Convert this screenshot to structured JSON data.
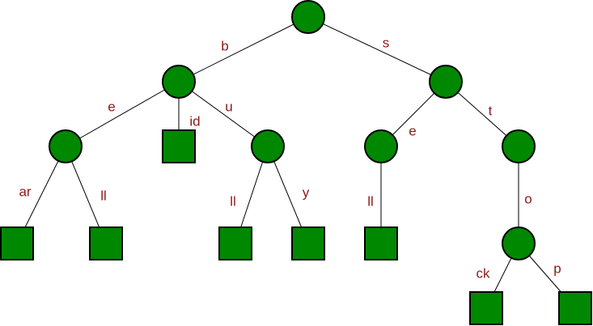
{
  "colors": {
    "node_fill": "#008800",
    "label": "#8b1a1a"
  },
  "tree": {
    "nodes": [
      {
        "id": "root",
        "kind": "internal"
      },
      {
        "id": "n-b",
        "kind": "internal"
      },
      {
        "id": "n-s",
        "kind": "internal"
      },
      {
        "id": "n-be",
        "kind": "internal"
      },
      {
        "id": "n-bid",
        "kind": "leaf"
      },
      {
        "id": "n-bu",
        "kind": "internal"
      },
      {
        "id": "n-bear",
        "kind": "leaf"
      },
      {
        "id": "n-bell",
        "kind": "leaf"
      },
      {
        "id": "n-bull",
        "kind": "leaf"
      },
      {
        "id": "n-buy",
        "kind": "leaf"
      },
      {
        "id": "n-se",
        "kind": "internal"
      },
      {
        "id": "n-st",
        "kind": "internal"
      },
      {
        "id": "n-sell",
        "kind": "leaf"
      },
      {
        "id": "n-sto",
        "kind": "internal"
      },
      {
        "id": "n-stock",
        "kind": "leaf"
      },
      {
        "id": "n-stop",
        "kind": "leaf"
      }
    ],
    "edges": [
      {
        "from": "root",
        "to": "n-b",
        "label": "b"
      },
      {
        "from": "root",
        "to": "n-s",
        "label": "s"
      },
      {
        "from": "n-b",
        "to": "n-be",
        "label": "e"
      },
      {
        "from": "n-b",
        "to": "n-bid",
        "label": "id"
      },
      {
        "from": "n-b",
        "to": "n-bu",
        "label": "u"
      },
      {
        "from": "n-be",
        "to": "n-bear",
        "label": "ar"
      },
      {
        "from": "n-be",
        "to": "n-bell",
        "label": "ll"
      },
      {
        "from": "n-bu",
        "to": "n-bull",
        "label": "ll"
      },
      {
        "from": "n-bu",
        "to": "n-buy",
        "label": "y"
      },
      {
        "from": "n-s",
        "to": "n-se",
        "label": "e"
      },
      {
        "from": "n-s",
        "to": "n-st",
        "label": "t"
      },
      {
        "from": "n-se",
        "to": "n-sell",
        "label": "ll"
      },
      {
        "from": "n-st",
        "to": "n-sto",
        "label": "o"
      },
      {
        "from": "n-sto",
        "to": "n-stock",
        "label": "ck"
      },
      {
        "from": "n-sto",
        "to": "n-stop",
        "label": "p"
      }
    ]
  }
}
